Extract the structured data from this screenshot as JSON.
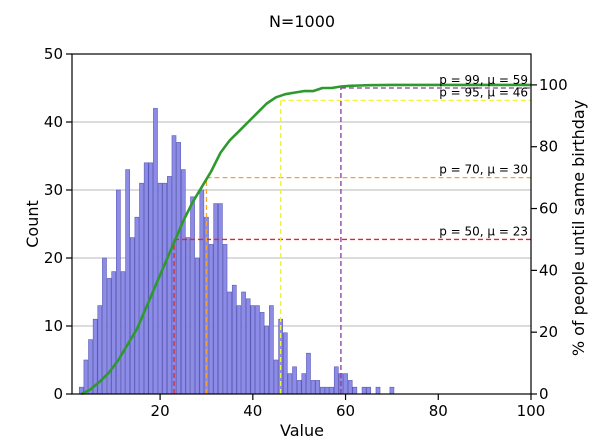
{
  "chart_data": {
    "type": "bar",
    "title": "N=1000",
    "xlabel": "Value",
    "ylabel": "Count",
    "y2label": "% of people until same birthday",
    "xlim": [
      1,
      100
    ],
    "ylim": [
      0,
      50
    ],
    "y2lim": [
      0,
      110
    ],
    "x_ticks": [
      20,
      40,
      60,
      80,
      100
    ],
    "y_ticks": [
      0,
      10,
      20,
      30,
      40,
      50
    ],
    "y2_ticks": [
      0,
      20,
      40,
      60,
      80,
      100
    ],
    "grid": "horizontal",
    "bar_color": "#8c8ce6",
    "bar_edge_color": "#5a5ab8",
    "histogram": {
      "x": [
        3,
        4,
        5,
        6,
        7,
        8,
        9,
        10,
        11,
        12,
        13,
        14,
        15,
        16,
        17,
        18,
        19,
        20,
        21,
        22,
        23,
        24,
        25,
        26,
        27,
        28,
        29,
        30,
        31,
        32,
        33,
        34,
        35,
        36,
        37,
        38,
        39,
        40,
        41,
        42,
        43,
        44,
        45,
        46,
        47,
        48,
        49,
        50,
        51,
        52,
        53,
        54,
        55,
        56,
        57,
        58,
        59,
        60,
        61,
        62,
        63,
        64,
        65,
        66,
        67,
        68,
        69,
        70
      ],
      "counts": [
        1,
        5,
        8,
        11,
        13,
        20,
        17,
        18,
        30,
        18,
        33,
        23,
        26,
        31,
        34,
        34,
        42,
        31,
        31,
        32,
        38,
        37,
        33,
        23,
        29,
        20,
        30,
        26,
        22,
        28,
        28,
        22,
        15,
        16,
        13,
        15,
        14,
        13,
        13,
        12,
        10,
        13,
        5,
        11,
        9,
        3,
        4,
        2,
        3,
        6,
        2,
        2,
        1,
        1,
        1,
        4,
        3,
        3,
        2,
        1,
        0,
        1,
        1,
        0,
        1,
        0,
        0,
        1
      ]
    },
    "cdf": {
      "name": "% of people until same birthday",
      "color": "#2e9a2e",
      "x": [
        3,
        5,
        7,
        9,
        11,
        13,
        15,
        17,
        19,
        21,
        23,
        25,
        27,
        29,
        31,
        33,
        35,
        37,
        39,
        41,
        43,
        45,
        47,
        49,
        51,
        53,
        55,
        57,
        59,
        61,
        63,
        65,
        70,
        80,
        100
      ],
      "y": [
        0,
        1.5,
        4,
        7,
        11,
        16,
        21,
        28,
        35,
        42,
        49,
        56,
        62,
        67,
        72,
        78,
        82,
        85,
        88,
        91,
        94,
        96,
        97,
        97.5,
        98,
        98,
        99,
        99,
        99.5,
        99.7,
        99.8,
        99.9,
        100,
        100,
        100
      ]
    },
    "thresholds": [
      {
        "p": 50,
        "mu": 23,
        "label": "p = 50, μ = 23",
        "color": "#ee2222"
      },
      {
        "p": 70,
        "mu": 30,
        "label": "p = 70, μ = 30",
        "color": "#f4a52a"
      },
      {
        "p": 95,
        "mu": 46,
        "label": "p = 95, μ = 46",
        "color": "#f2f23a"
      },
      {
        "p": 99,
        "mu": 59,
        "label": "p = 99, μ = 59",
        "color": "#8a3a9c"
      }
    ]
  }
}
